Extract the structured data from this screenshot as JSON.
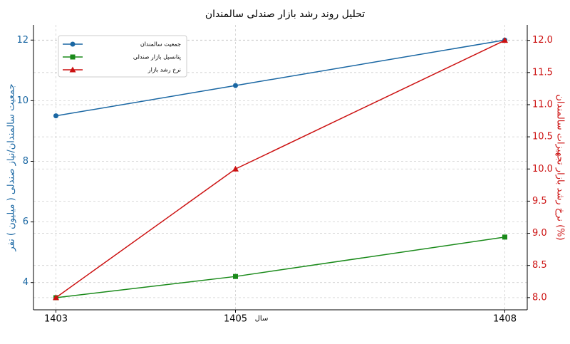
{
  "chart_data": {
    "type": "line",
    "title": "تحلیل روند رشد بازار صندلی سالمندان",
    "x": [
      1403,
      1405,
      1408
    ],
    "xlabel": "سال",
    "ylabel": "جمعیت سالمندان/نیاز صندلی ( میلیون ) نفر",
    "y2label": "نرخ رشد بازار تجهیزات سالمندان (%)",
    "xlim": [
      1402.75,
      1408.25
    ],
    "xticks": [
      1403,
      1405,
      1408
    ],
    "ylim": [
      3.1,
      12.5
    ],
    "yticks": [
      4,
      6,
      8,
      10,
      12
    ],
    "y2lim": [
      7.81,
      12.24
    ],
    "y2ticks": [
      {
        "value": 8,
        "label": "8.0"
      },
      8.5,
      {
        "value": 9,
        "label": "9.0"
      },
      9.5,
      {
        "value": 10,
        "label": "10.0"
      },
      10.5,
      {
        "value": 11,
        "label": "11.0"
      },
      11.5,
      {
        "value": 12,
        "label": "12.0"
      }
    ],
    "ycolor": "#1a67a3",
    "y2color": "#cc1111",
    "grid": true,
    "legend": "upper left",
    "series": [
      {
        "name": "جمعیت سالمندان",
        "color": "#1a67a3",
        "marker": "circle",
        "values": [
          9.5,
          10.5,
          12
        ]
      },
      {
        "name": "پتانسیل بازار صندلی",
        "color": "#1a8a1a",
        "marker": "square",
        "values": [
          3.5,
          4.2,
          5.5
        ]
      },
      {
        "name": "نرخ رشد بازار",
        "color": "#cc1111",
        "marker": "triangle",
        "axis": "y2",
        "values": [
          8,
          10,
          12
        ]
      }
    ]
  }
}
